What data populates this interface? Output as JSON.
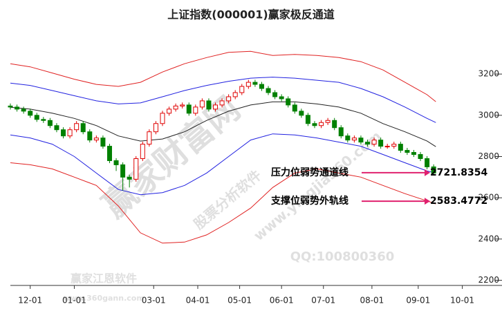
{
  "chart_data": {
    "type": "candlestick",
    "title": "上证指数(000001)赢家极反通道",
    "xlim": [
      -9,
      214
    ],
    "xticks": [
      {
        "value": 0,
        "label": "12-01"
      },
      {
        "value": 20,
        "label": "01-01"
      },
      {
        "value": 56,
        "label": "03-01"
      },
      {
        "value": 76,
        "label": "04-01"
      },
      {
        "value": 95,
        "label": "05-01"
      },
      {
        "value": 114,
        "label": "06-01"
      },
      {
        "value": 133,
        "label": "07-01"
      },
      {
        "value": 155,
        "label": "08-01"
      },
      {
        "value": 176,
        "label": "09-01"
      },
      {
        "value": 196,
        "label": "10-01"
      }
    ],
    "ylim": [
      2175,
      3425
    ],
    "yticks": [
      2200,
      2400,
      2600,
      2800,
      3000,
      3200
    ],
    "up_color": "#e00000",
    "down_color": "#008000",
    "candles": {
      "x": [
        -9,
        -6,
        -3,
        0,
        3,
        6,
        9,
        12,
        15,
        18,
        21,
        24,
        27,
        30,
        33,
        36,
        39,
        42,
        45,
        48,
        51,
        54,
        57,
        60,
        63,
        66,
        69,
        72,
        75,
        78,
        81,
        84,
        87,
        90,
        93,
        96,
        99,
        102,
        105,
        108,
        111,
        114,
        117,
        120,
        123,
        126,
        129,
        132,
        135,
        138,
        141,
        144,
        147,
        150,
        153,
        156,
        159,
        162,
        165,
        168,
        171,
        174,
        177,
        180,
        183
      ],
      "open": [
        3045,
        3040,
        3030,
        3020,
        3000,
        2980,
        2975,
        2950,
        2930,
        2900,
        2930,
        2960,
        2920,
        2880,
        2890,
        2850,
        2780,
        2760,
        2700,
        2690,
        2790,
        2860,
        2920,
        2960,
        3010,
        3030,
        3045,
        3050,
        3010,
        3040,
        3070,
        3030,
        3050,
        3070,
        3090,
        3110,
        3140,
        3160,
        3150,
        3130,
        3110,
        3090,
        3080,
        3050,
        3020,
        3000,
        2960,
        2950,
        2965,
        2975,
        2940,
        2900,
        2880,
        2890,
        2870,
        2860,
        2880,
        2850,
        2850,
        2860,
        2830,
        2820,
        2810,
        2790,
        2750
      ],
      "close": [
        3040,
        3030,
        3020,
        3000,
        2980,
        2975,
        2950,
        2930,
        2900,
        2930,
        2960,
        2920,
        2880,
        2890,
        2850,
        2780,
        2760,
        2700,
        2690,
        2790,
        2860,
        2920,
        2960,
        3010,
        3030,
        3045,
        3050,
        3010,
        3040,
        3070,
        3030,
        3050,
        3070,
        3090,
        3110,
        3140,
        3160,
        3150,
        3130,
        3110,
        3090,
        3080,
        3050,
        3020,
        3000,
        2960,
        2950,
        2965,
        2975,
        2940,
        2900,
        2880,
        2890,
        2870,
        2860,
        2880,
        2850,
        2850,
        2860,
        2830,
        2820,
        2810,
        2790,
        2750,
        2720
      ],
      "high": [
        3057,
        3052,
        3042,
        3032,
        3012,
        2992,
        2987,
        2962,
        2942,
        2942,
        2972,
        2972,
        2932,
        2902,
        2902,
        2862,
        2792,
        2772,
        2712,
        2802,
        2872,
        2932,
        2972,
        3022,
        3042,
        3057,
        3062,
        3062,
        3052,
        3082,
        3082,
        3062,
        3082,
        3102,
        3122,
        3152,
        3172,
        3172,
        3162,
        3142,
        3122,
        3102,
        3092,
        3062,
        3032,
        3012,
        2972,
        2977,
        2987,
        2987,
        2952,
        2912,
        2902,
        2902,
        2882,
        2892,
        2892,
        2862,
        2872,
        2872,
        2842,
        2832,
        2822,
        2802,
        2762
      ],
      "low": [
        3028,
        3018,
        3008,
        2988,
        2968,
        2963,
        2938,
        2918,
        2888,
        2888,
        2918,
        2908,
        2868,
        2868,
        2838,
        2768,
        2730,
        2635,
        2650,
        2678,
        2778,
        2848,
        2908,
        2948,
        2998,
        3018,
        3033,
        2998,
        2998,
        3028,
        3018,
        3018,
        3038,
        3058,
        3078,
        3098,
        3128,
        3138,
        3118,
        3098,
        3078,
        3068,
        3038,
        3008,
        2988,
        2948,
        2938,
        2938,
        2953,
        2928,
        2888,
        2868,
        2868,
        2858,
        2848,
        2848,
        2838,
        2838,
        2838,
        2818,
        2808,
        2798,
        2778,
        2738,
        2708
      ]
    },
    "line_x": [
      -9,
      0,
      10,
      20,
      30,
      40,
      50,
      60,
      70,
      80,
      90,
      100,
      110,
      120,
      130,
      140,
      150,
      160,
      170,
      180,
      184
    ],
    "lines": [
      {
        "color": "#e02020",
        "values": [
          3250,
          3235,
          3205,
          3175,
          3150,
          3140,
          3160,
          3210,
          3250,
          3280,
          3305,
          3310,
          3290,
          3295,
          3290,
          3280,
          3260,
          3220,
          3160,
          3100,
          3066
        ]
      },
      {
        "color": "#2020e0",
        "values": [
          3156,
          3145,
          3120,
          3095,
          3070,
          3055,
          3060,
          3090,
          3120,
          3145,
          3165,
          3180,
          3185,
          3180,
          3170,
          3160,
          3130,
          3090,
          3040,
          2985,
          2965
        ]
      },
      {
        "color": "#202020",
        "values": [
          3039,
          3030,
          3010,
          2985,
          2950,
          2900,
          2875,
          2885,
          2920,
          2975,
          3020,
          3050,
          3065,
          3065,
          3055,
          3040,
          3010,
          2960,
          2920,
          2875,
          2848
        ]
      },
      {
        "color": "#2020e0",
        "values": [
          2905,
          2890,
          2860,
          2800,
          2720,
          2640,
          2615,
          2625,
          2660,
          2720,
          2800,
          2880,
          2910,
          2905,
          2890,
          2870,
          2850,
          2810,
          2770,
          2730,
          2720
        ]
      },
      {
        "color": "#e02020",
        "values": [
          2770,
          2760,
          2740,
          2700,
          2660,
          2560,
          2430,
          2380,
          2385,
          2420,
          2480,
          2550,
          2650,
          2720,
          2740,
          2720,
          2700,
          2660,
          2620,
          2585,
          2570
        ]
      }
    ],
    "annotations": [
      {
        "text": "压力位弱势通道线",
        "value": 2721.8354
      },
      {
        "text": "支撑位弱势外轨线",
        "value": 2583.4772
      }
    ],
    "watermarks": [
      "赢家财富网",
      "股票分析软件",
      "www.yingjia360.com",
      "QQ:100800360",
      "赢家江恩软件",
      "www.360gann.com"
    ]
  }
}
